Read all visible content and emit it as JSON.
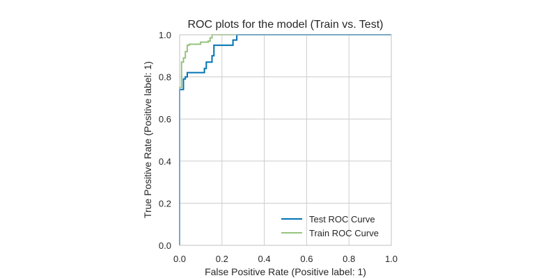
{
  "chart_data": {
    "type": "line",
    "title": "ROC plots for the model (Train vs. Test)",
    "xlabel": "False Positive Rate (Positive label: 1)",
    "ylabel": "True Positive Rate (Positive label: 1)",
    "xlim": [
      0,
      1
    ],
    "ylim": [
      0,
      1
    ],
    "x_ticks": [
      "0.0",
      "0.2",
      "0.4",
      "0.6",
      "0.8",
      "1.0"
    ],
    "y_ticks": [
      "0.0",
      "0.2",
      "0.4",
      "0.6",
      "0.8",
      "1.0"
    ],
    "grid": true,
    "legend": "lower-right",
    "series": [
      {
        "name": "Test ROC Curve",
        "color": "#0072b2",
        "x": [
          0.0,
          0.0,
          0.0,
          0.0,
          0.018,
          0.018,
          0.027,
          0.027,
          0.036,
          0.036,
          0.117,
          0.117,
          0.126,
          0.126,
          0.153,
          0.153,
          0.162,
          0.162,
          0.252,
          0.252,
          0.27,
          0.27,
          1.0
        ],
        "y": [
          0.0,
          0.42,
          0.42,
          0.74,
          0.74,
          0.79,
          0.79,
          0.8,
          0.8,
          0.82,
          0.82,
          0.84,
          0.84,
          0.87,
          0.87,
          0.9,
          0.9,
          0.95,
          0.95,
          0.975,
          0.975,
          1.0,
          1.0
        ]
      },
      {
        "name": "Train ROC Curve",
        "color": "#95c47c",
        "x": [
          0.0,
          0.0,
          0.009,
          0.009,
          0.018,
          0.018,
          0.027,
          0.027,
          0.036,
          0.036,
          0.045,
          0.045,
          0.099,
          0.099,
          0.135,
          0.135,
          0.144,
          0.144,
          0.153,
          0.153,
          1.0
        ],
        "y": [
          0.0,
          0.75,
          0.75,
          0.87,
          0.87,
          0.89,
          0.89,
          0.92,
          0.92,
          0.95,
          0.95,
          0.955,
          0.955,
          0.965,
          0.965,
          0.97,
          0.97,
          0.985,
          0.985,
          1.0,
          1.0
        ]
      }
    ]
  }
}
